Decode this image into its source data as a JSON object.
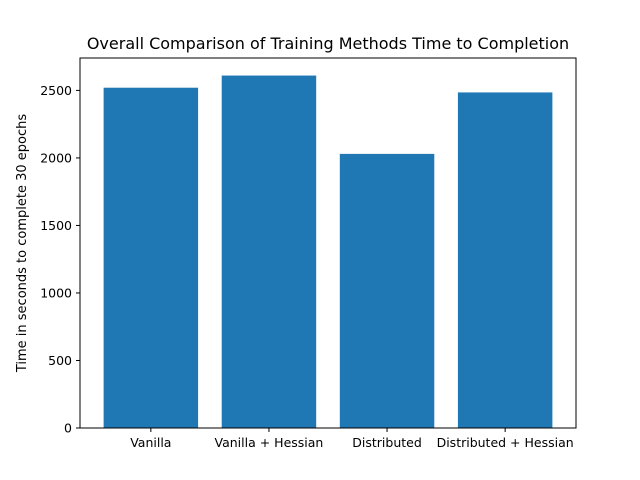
{
  "chart_data": {
    "type": "bar",
    "title": "Overall Comparison of Training Methods Time to Completion",
    "xlabel": "",
    "ylabel": "Time in seconds to complete 30 epochs",
    "categories": [
      "Vanilla",
      "Vanilla + Hessian",
      "Distributed",
      "Distributed + Hessian"
    ],
    "values": [
      2520,
      2610,
      2030,
      2485
    ],
    "ylim": [
      0,
      2740
    ],
    "yticks": [
      0,
      500,
      1000,
      1500,
      2000,
      2500
    ],
    "ytick_labels": [
      "0",
      "500",
      "1000",
      "1500",
      "2000",
      "2500"
    ],
    "bar_color": "#1f77b4",
    "grid": false,
    "legend": "none"
  }
}
